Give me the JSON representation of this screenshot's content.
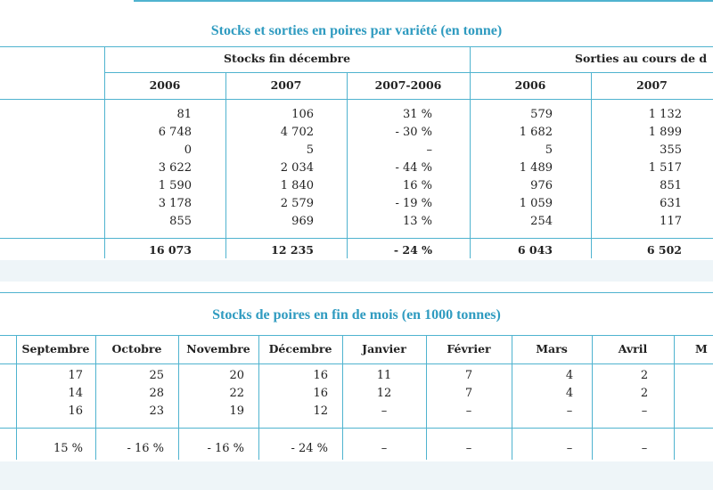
{
  "table1": {
    "title": "Stocks et sorties en poires par variété (en tonne)",
    "group_stocks": "Stocks fin décembre",
    "group_sorties": "Sorties au cours de d",
    "cols": [
      "2006",
      "2007",
      "2007-2006",
      "2006",
      "2007"
    ],
    "rows": [
      [
        "81",
        "106",
        "31 %",
        "579",
        "1 132"
      ],
      [
        "6 748",
        "4 702",
        "- 30 %",
        "1 682",
        "1 899"
      ],
      [
        "0",
        "5",
        "–",
        "5",
        "355"
      ],
      [
        "3 622",
        "2 034",
        "- 44 %",
        "1 489",
        "1 517"
      ],
      [
        "1 590",
        "1 840",
        "16 %",
        "976",
        "851"
      ],
      [
        "3 178",
        "2 579",
        "- 19 %",
        "1 059",
        "631"
      ],
      [
        "855",
        "969",
        "13 %",
        "254",
        "117"
      ]
    ],
    "total": [
      "16 073",
      "12 235",
      "- 24 %",
      "6 043",
      "6 502"
    ]
  },
  "table2": {
    "title": "Stocks de poires en fin de mois (en 1000 tonnes)",
    "months": [
      "Septembre",
      "Octobre",
      "Novembre",
      "Décembre",
      "Janvier",
      "Février",
      "Mars",
      "Avril",
      "M"
    ],
    "rows": [
      [
        "17",
        "25",
        "20",
        "16",
        "11",
        "7",
        "4",
        "2"
      ],
      [
        "14",
        "28",
        "22",
        "16",
        "12",
        "7",
        "4",
        "2"
      ],
      [
        "16",
        "23",
        "19",
        "12",
        "–",
        "–",
        "–",
        "–"
      ],
      [
        "15 %",
        "- 16 %",
        "- 16 %",
        "- 24 %",
        "–",
        "–",
        "–",
        "–"
      ]
    ]
  },
  "colors": {
    "accent": "#4fb3cf",
    "title": "#2f9bc0"
  }
}
